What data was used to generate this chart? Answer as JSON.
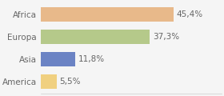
{
  "categories": [
    "Africa",
    "Europa",
    "Asia",
    "America"
  ],
  "values": [
    45.4,
    37.3,
    11.8,
    5.5
  ],
  "labels": [
    "45,4%",
    "37,3%",
    "11,8%",
    "5,5%"
  ],
  "bar_colors": [
    "#e8b98a",
    "#b5c98a",
    "#6b83c4",
    "#f0d080"
  ],
  "background_color": "#f5f5f5",
  "xlim": [
    0,
    62
  ],
  "bar_height": 0.62,
  "label_fontsize": 7.5,
  "ytick_fontsize": 7.5,
  "label_color": "#666666",
  "ytick_color": "#666666"
}
